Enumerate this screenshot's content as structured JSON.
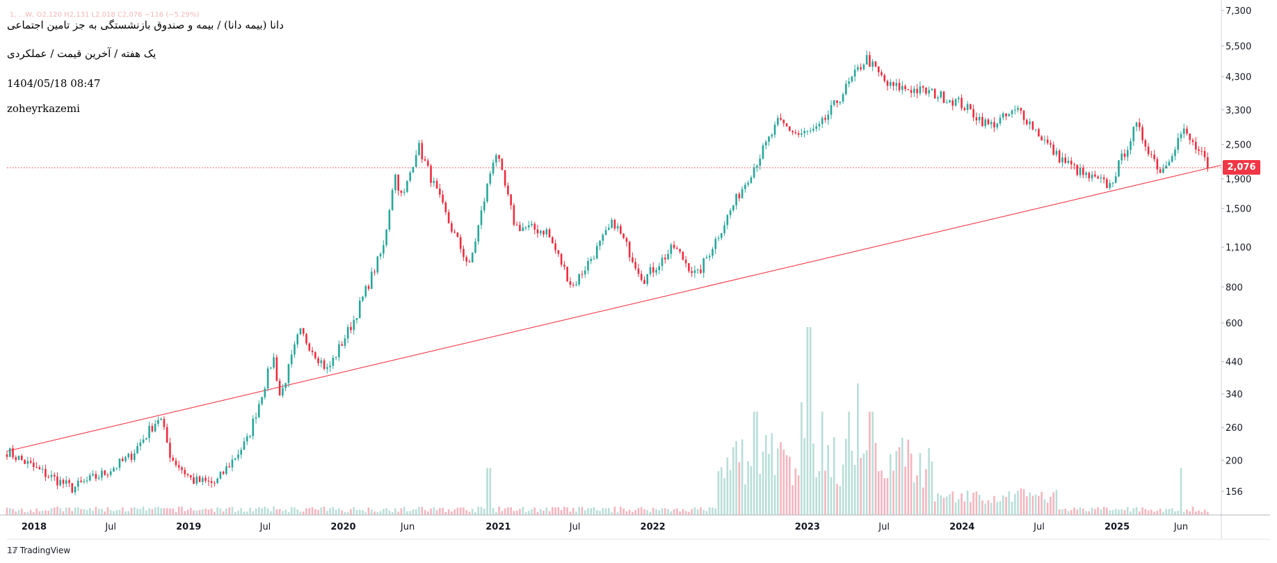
{
  "header": {
    "ohlc_line": "1, ...W, O2,120 H2,131 L2,018 C2,076 −116 (−5.29%)",
    "title": "دانا (بیمه دانا) / بیمه و صندوق بازنشستگی به جز تامین اجتماعی",
    "subtitle": "یک هفته / آخرین قیمت / عملکردی",
    "datetime": "1404/05/18 08:47",
    "author": "zoheyrkazemi"
  },
  "brand": {
    "name": "TradingView",
    "icon": "tradingview-logo-icon"
  },
  "colors": {
    "up": "#26a69a",
    "down": "#ef2b3d",
    "trendline": "#f23645",
    "vol_up": "#b8ded7",
    "vol_down": "#f5b4be",
    "badge": "#f23645"
  },
  "chart_data": {
    "type": "candlestick",
    "timeframe": "1W",
    "scale": "log",
    "last_price": 2076,
    "last_price_label": "2,076",
    "y_ticks": [
      156,
      200,
      260,
      340,
      440,
      600,
      800,
      1100,
      1500,
      1900,
      2500,
      3300,
      4300,
      5500,
      7300
    ],
    "y_tick_labels": [
      "156",
      "200",
      "260",
      "340",
      "440",
      "600",
      "800",
      "1,100",
      "1,500",
      "1,900",
      "2,500",
      "3,300",
      "4,300",
      "5,500",
      "7,300"
    ],
    "x_ticks": [
      {
        "label": "2018",
        "date": "2018-01-01",
        "bold": true
      },
      {
        "label": "Jul",
        "date": "2018-07-01",
        "bold": false
      },
      {
        "label": "2019",
        "date": "2019-01-01",
        "bold": true
      },
      {
        "label": "Jul",
        "date": "2019-07-01",
        "bold": false
      },
      {
        "label": "2020",
        "date": "2020-01-01",
        "bold": true
      },
      {
        "label": "Jun",
        "date": "2020-06-01",
        "bold": false
      },
      {
        "label": "2021",
        "date": "2021-01-01",
        "bold": true
      },
      {
        "label": "Jul",
        "date": "2021-07-01",
        "bold": false
      },
      {
        "label": "2022",
        "date": "2022-01-01",
        "bold": true
      },
      {
        "label": "2023",
        "date": "2023-01-01",
        "bold": true
      },
      {
        "label": "Jul",
        "date": "2023-07-01",
        "bold": false
      },
      {
        "label": "2024",
        "date": "2024-01-01",
        "bold": true
      },
      {
        "label": "Jul",
        "date": "2024-07-01",
        "bold": false
      },
      {
        "label": "2025",
        "date": "2025-01-01",
        "bold": true
      },
      {
        "label": "Jun",
        "date": "2025-06-01",
        "bold": false
      }
    ],
    "date_range": [
      "2017-10-29",
      "2025-08-09"
    ],
    "trendline": [
      {
        "date": "2017-10-29",
        "value": 215
      },
      {
        "date": "2025-08-09",
        "value": 2076
      }
    ],
    "price_path": [
      {
        "date": "2017-10-29",
        "close": 215
      },
      {
        "date": "2018-01-10",
        "close": 185
      },
      {
        "date": "2018-04-01",
        "close": 160
      },
      {
        "date": "2018-06-15",
        "close": 180
      },
      {
        "date": "2018-08-15",
        "close": 205
      },
      {
        "date": "2018-10-25",
        "close": 285
      },
      {
        "date": "2018-11-20",
        "close": 205
      },
      {
        "date": "2019-01-10",
        "close": 170
      },
      {
        "date": "2019-03-05",
        "close": 166
      },
      {
        "date": "2019-05-20",
        "close": 235
      },
      {
        "date": "2019-07-20",
        "close": 460
      },
      {
        "date": "2019-08-05",
        "close": 330
      },
      {
        "date": "2019-09-20",
        "close": 560
      },
      {
        "date": "2019-11-25",
        "close": 410
      },
      {
        "date": "2020-01-25",
        "close": 610
      },
      {
        "date": "2020-04-05",
        "close": 1100
      },
      {
        "date": "2020-05-01",
        "close": 2000
      },
      {
        "date": "2020-05-20",
        "close": 1600
      },
      {
        "date": "2020-06-25",
        "close": 2500
      },
      {
        "date": "2020-09-05",
        "close": 1350
      },
      {
        "date": "2020-10-25",
        "close": 940
      },
      {
        "date": "2020-12-25",
        "close": 2400
      },
      {
        "date": "2021-02-10",
        "close": 1300
      },
      {
        "date": "2021-04-25",
        "close": 1250
      },
      {
        "date": "2021-06-25",
        "close": 800
      },
      {
        "date": "2021-08-25",
        "close": 1100
      },
      {
        "date": "2021-10-01",
        "close": 1350
      },
      {
        "date": "2021-12-10",
        "close": 850
      },
      {
        "date": "2022-02-20",
        "close": 1100
      },
      {
        "date": "2022-04-15",
        "close": 870
      },
      {
        "date": "2022-07-25",
        "close": 1700
      },
      {
        "date": "2022-10-25",
        "close": 3000
      },
      {
        "date": "2022-12-10",
        "close": 2700
      },
      {
        "date": "2023-01-25",
        "close": 2800
      },
      {
        "date": "2023-05-20",
        "close": 5000
      },
      {
        "date": "2023-07-10",
        "close": 4000
      },
      {
        "date": "2023-10-15",
        "close": 3800
      },
      {
        "date": "2023-12-25",
        "close": 3500
      },
      {
        "date": "2024-03-05",
        "close": 2900
      },
      {
        "date": "2024-05-15",
        "close": 3300
      },
      {
        "date": "2024-08-10",
        "close": 2300
      },
      {
        "date": "2024-10-15",
        "close": 1950
      },
      {
        "date": "2024-12-15",
        "close": 1800
      },
      {
        "date": "2025-02-15",
        "close": 2900
      },
      {
        "date": "2025-04-15",
        "close": 2000
      },
      {
        "date": "2025-06-05",
        "close": 2800
      },
      {
        "date": "2025-08-09",
        "close": 2076
      }
    ],
    "volume_spikes": [
      {
        "date": "2020-12-10",
        "level": 0.25
      },
      {
        "date": "2022-09-01",
        "level": 0.55
      },
      {
        "date": "2022-12-20",
        "level": 0.6
      },
      {
        "date": "2023-01-05",
        "level": 1.0
      },
      {
        "date": "2023-02-05",
        "level": 0.55
      },
      {
        "date": "2023-04-10",
        "level": 0.55
      },
      {
        "date": "2023-05-01",
        "level": 0.7
      },
      {
        "date": "2023-06-01",
        "level": 0.55
      },
      {
        "date": "2025-06-01",
        "level": 0.25
      }
    ]
  }
}
